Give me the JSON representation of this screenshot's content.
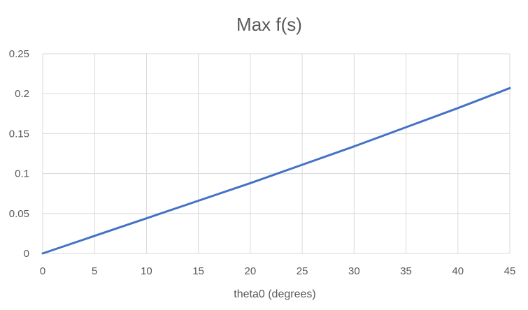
{
  "chart_data": {
    "type": "line",
    "title": "Max f(s)",
    "xlabel": "theta0 (degrees)",
    "ylabel": "",
    "xlim": [
      0,
      45
    ],
    "ylim": [
      0,
      0.25
    ],
    "x_ticks": [
      "0",
      "5",
      "10",
      "15",
      "20",
      "25",
      "30",
      "35",
      "40",
      "45"
    ],
    "y_ticks": [
      "0",
      "0.05",
      "0.1",
      "0.15",
      "0.2",
      "0.25"
    ],
    "grid": true,
    "legend": "none",
    "series": [
      {
        "color": "#4472c4",
        "x": [
          0,
          5,
          10,
          15,
          20,
          25,
          30,
          35,
          40,
          45
        ],
        "y": [
          0,
          0.022,
          0.044,
          0.066,
          0.088,
          0.111,
          0.134,
          0.158,
          0.182,
          0.207
        ]
      }
    ]
  }
}
